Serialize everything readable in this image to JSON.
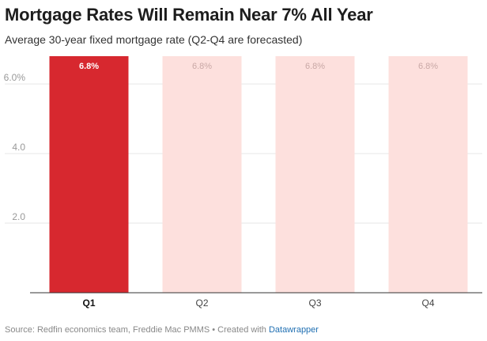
{
  "title": "Mortgage Rates Will Remain Near 7% All Year",
  "subtitle": "Average 30-year fixed mortgage rate (Q2-Q4 are forecasted)",
  "footer": {
    "source": "Source: Redfin economics team, Freddie Mac PMMS • Created with ",
    "link": "Datawrapper"
  },
  "colors": {
    "actual": "#d7282f",
    "forecast": "#fde0dd",
    "grid": "#e6e6e6",
    "axis": "#333333",
    "tick": "#999999"
  },
  "chart_data": {
    "type": "bar",
    "categories": [
      "Q1",
      "Q2",
      "Q3",
      "Q4"
    ],
    "values": [
      6.8,
      6.8,
      6.8,
      6.8
    ],
    "value_labels": [
      "6.8%",
      "6.8%",
      "6.8%",
      "6.8%"
    ],
    "forecasted": [
      false,
      true,
      true,
      true
    ],
    "yticks": [
      {
        "value": 2,
        "label": "2.0"
      },
      {
        "value": 4,
        "label": "4.0"
      },
      {
        "value": 6,
        "label": "6.0%"
      }
    ],
    "ylim": [
      0,
      6.8
    ],
    "grid": true,
    "xlabel": "",
    "ylabel": ""
  }
}
